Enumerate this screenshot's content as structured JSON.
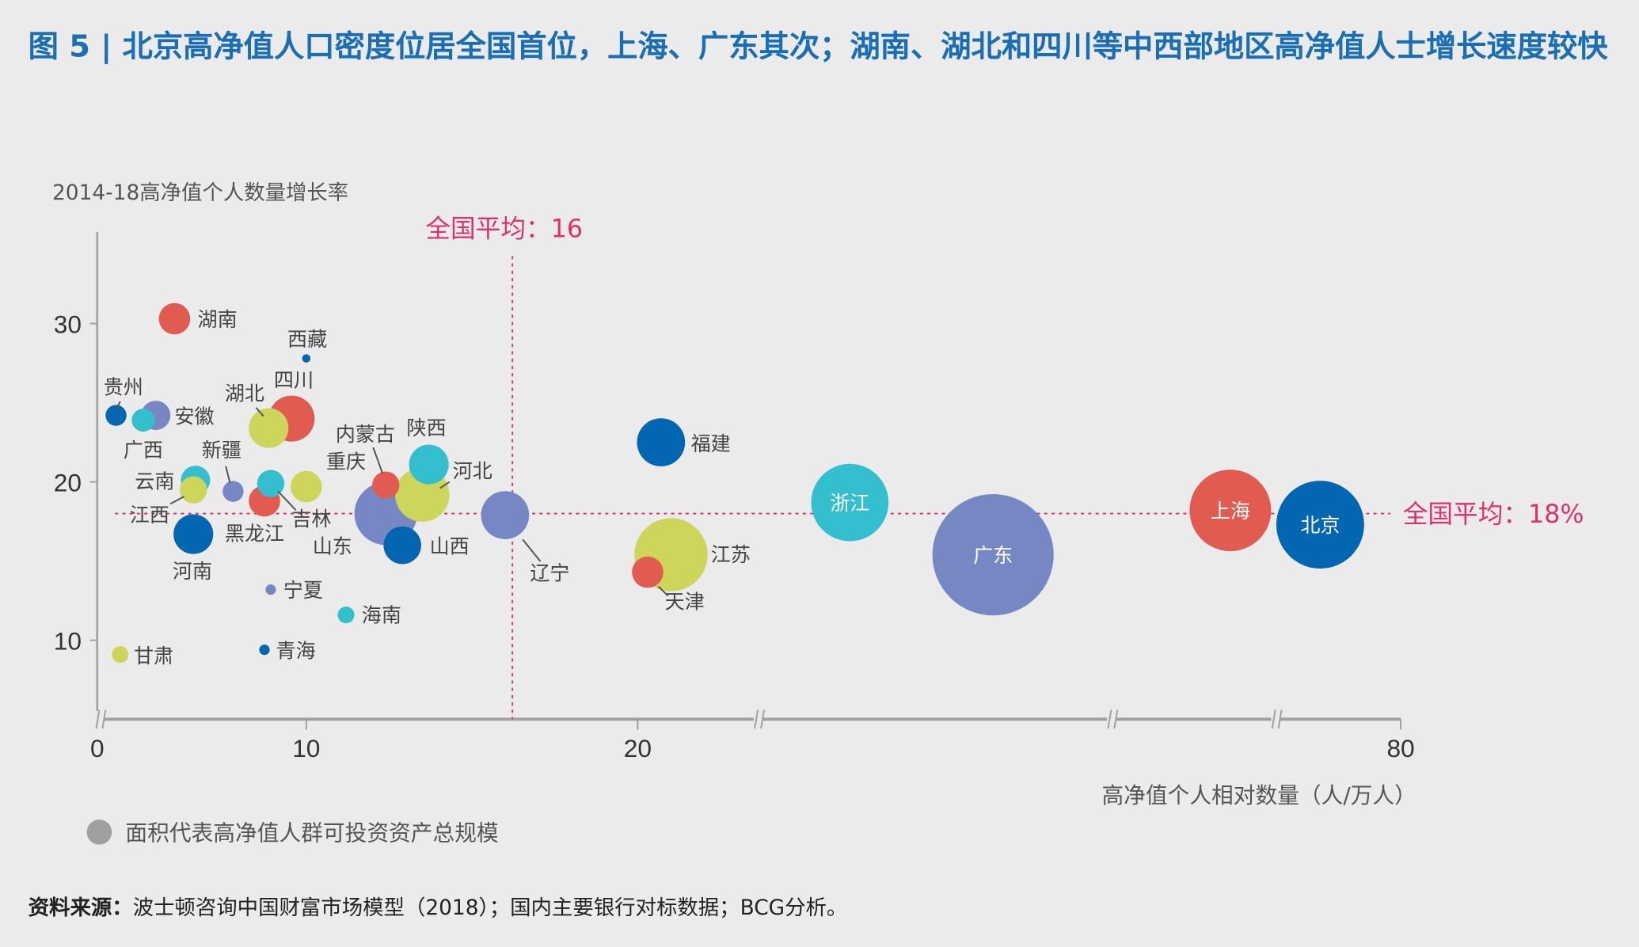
{
  "title": "图 5 | 北京高净值人口密度位居全国首位，上海、广东其次；湖南、湖北和四川等中西部地区高净值人士增长速度较快",
  "source_label": "资料来源：",
  "source_text": "波士顿咨询中国财富市场模型（2018）；国内主要银行对标数据；BCG分析。",
  "colors": {
    "red": "#e05b50",
    "blue": "#0266b3",
    "cyan": "#33bfcd",
    "purple": "#7688c4",
    "green": "#cdd55a",
    "title": "#1a6fb4",
    "avg": "#e0306a",
    "axis": "#999999"
  },
  "chart_data": {
    "type": "scatter",
    "ylabel": "2014-18高净值个人数量增长率",
    "xlabel": "高净值个人相对数量（人/万人）",
    "x_ticks": [
      "0",
      "10",
      "20",
      "80"
    ],
    "y_ticks": [
      "10",
      "20",
      "30"
    ],
    "ylim": [
      5,
      35
    ],
    "x_axis_breaks": true,
    "size_legend": "面积代表高净值人群可投资资产总规模",
    "avg_x_label": "全国平均：16",
    "avg_x": 16,
    "avg_y_label": "全国平均：18%",
    "avg_y": 18,
    "grid": false,
    "bubbles": [
      {
        "name": "湖南",
        "x": 3.7,
        "y": 30.3,
        "size": 15,
        "color": "red"
      },
      {
        "name": "西藏",
        "x": 10,
        "y": 27.8,
        "size": 4,
        "color": "blue"
      },
      {
        "name": "贵州",
        "x": 0.9,
        "y": 24.2,
        "size": 10,
        "color": "blue"
      },
      {
        "name": "安徽",
        "x": 2.8,
        "y": 24.2,
        "size": 14,
        "color": "purple"
      },
      {
        "name": "广西",
        "x": 2.2,
        "y": 23.9,
        "size": 11,
        "color": "cyan"
      },
      {
        "name": "四川",
        "x": 9.3,
        "y": 24,
        "size": 22,
        "color": "red"
      },
      {
        "name": "湖北",
        "x": 8.2,
        "y": 23.4,
        "size": 19,
        "color": "green"
      },
      {
        "name": "新疆",
        "x": 6.5,
        "y": 19.4,
        "size": 10,
        "color": "purple"
      },
      {
        "name": "云南",
        "x": 4.7,
        "y": 20.1,
        "size": 14,
        "color": "cyan"
      },
      {
        "name": "江西",
        "x": 4.6,
        "y": 19.5,
        "size": 13,
        "color": "green"
      },
      {
        "name": "黑龙江",
        "x": 8,
        "y": 18.8,
        "size": 15,
        "color": "red"
      },
      {
        "name": "吉林",
        "x": 8.3,
        "y": 19.9,
        "size": 13,
        "color": "cyan"
      },
      {
        "name": "",
        "x": 10,
        "y": 19.7,
        "size": 15,
        "color": "green"
      },
      {
        "name": "山东",
        "x": 12.4,
        "y": 18,
        "size": 30,
        "color": "purple"
      },
      {
        "name": "河北",
        "x": 13.5,
        "y": 19.2,
        "size": 26,
        "color": "green"
      },
      {
        "name": "重庆",
        "x": 12.4,
        "y": 19.8,
        "size": 13,
        "color": "red"
      },
      {
        "name": "内蒙古",
        "x": null,
        "y": null,
        "size": 0,
        "color": "red"
      },
      {
        "name": "陕西",
        "x": 13.7,
        "y": 21.1,
        "size": 19,
        "color": "cyan"
      },
      {
        "name": "山西",
        "x": 12.9,
        "y": 16,
        "size": 18,
        "color": "blue"
      },
      {
        "name": "河南",
        "x": 4.6,
        "y": 16.7,
        "size": 19,
        "color": "blue"
      },
      {
        "name": "宁夏",
        "x": 8.3,
        "y": 13.2,
        "size": 5,
        "color": "purple"
      },
      {
        "name": "海南",
        "x": 11.2,
        "y": 11.6,
        "size": 8,
        "color": "cyan"
      },
      {
        "name": "青海",
        "x": 8,
        "y": 9.4,
        "size": 5,
        "color": "blue"
      },
      {
        "name": "甘肃",
        "x": 1.1,
        "y": 9.1,
        "size": 8,
        "color": "green"
      },
      {
        "name": "辽宁",
        "x": 16,
        "y": 17.9,
        "size": 23,
        "color": "purple"
      },
      {
        "name": "福建",
        "x": 20.7,
        "y": 22.5,
        "size": 23,
        "color": "blue"
      },
      {
        "name": "江苏",
        "x": 21,
        "y": 15.4,
        "size": 35,
        "color": "green"
      },
      {
        "name": "天津",
        "x": 20.3,
        "y": 14.3,
        "size": 15,
        "color": "red"
      },
      {
        "name": "浙江",
        "x": 30,
        "y": 18.7,
        "size": 37,
        "color": "cyan"
      },
      {
        "name": "广东",
        "x": 41,
        "y": 15.4,
        "size": 58,
        "color": "purple"
      },
      {
        "name": "上海",
        "x": 72,
        "y": 18.2,
        "size": 39,
        "color": "red"
      },
      {
        "name": "北京",
        "x": 76,
        "y": 17.3,
        "size": 42,
        "color": "blue"
      }
    ]
  }
}
